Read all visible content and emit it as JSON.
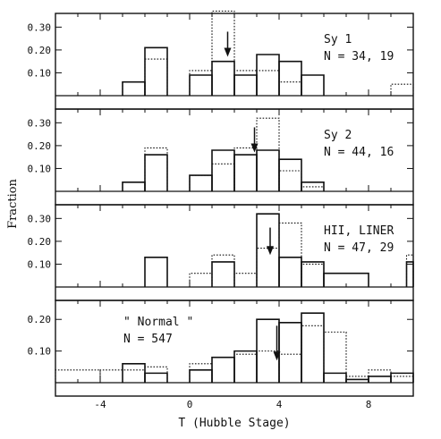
{
  "chart_data": {
    "type": "histogram",
    "xlabel": "T (Hubble Stage)",
    "ylabel": "Fraction",
    "xlim": [
      -6,
      10
    ],
    "x_ticks": [
      -4,
      0,
      4,
      8
    ],
    "x_tick_labels": [
      "-4",
      "0",
      "4",
      "8"
    ],
    "bins": [
      -3,
      -2,
      -1,
      0,
      1,
      2,
      3,
      4,
      5,
      6,
      7,
      8,
      9,
      10
    ],
    "panels": [
      {
        "label_line1": "Sy 1",
        "label_line2": "N = 34, 19",
        "ylim": [
          0,
          0.36
        ],
        "y_ticks": [
          0.1,
          0.2,
          0.3
        ],
        "y_tick_labels": [
          "0.10",
          "0.20",
          "0.30"
        ],
        "solid": [
          {
            "x0": -3,
            "x1": -2,
            "y": 0.06
          },
          {
            "x0": -2,
            "x1": -1,
            "y": 0.21
          },
          {
            "x0": 0,
            "x1": 1,
            "y": 0.09
          },
          {
            "x0": 1,
            "x1": 2,
            "y": 0.15
          },
          {
            "x0": 2,
            "x1": 3,
            "y": 0.09
          },
          {
            "x0": 3,
            "x1": 4,
            "y": 0.18
          },
          {
            "x0": 4,
            "x1": 5,
            "y": 0.15
          },
          {
            "x0": 5,
            "x1": 6,
            "y": 0.09
          }
        ],
        "dotted": [
          {
            "x0": -3,
            "x1": -2,
            "y": 0.06
          },
          {
            "x0": -2,
            "x1": -1,
            "y": 0.16
          },
          {
            "x0": 0,
            "x1": 1,
            "y": 0.11
          },
          {
            "x0": 1,
            "x1": 2,
            "y": 0.37
          },
          {
            "x0": 2,
            "x1": 3,
            "y": 0.11
          },
          {
            "x0": 3,
            "x1": 4,
            "y": 0.11
          },
          {
            "x0": 4,
            "x1": 5,
            "y": 0.06
          },
          {
            "x0": 9,
            "x1": 10,
            "y": 0.05
          }
        ],
        "arrow_x": 1.7,
        "arrow_y_top": 0.28,
        "arrow_y_bottom": 0.17
      },
      {
        "label_line1": "Sy 2",
        "label_line2": "N = 44, 16",
        "ylim": [
          0,
          0.36
        ],
        "y_ticks": [
          0.1,
          0.2,
          0.3
        ],
        "y_tick_labels": [
          "0.10",
          "0.20",
          "0.30"
        ],
        "solid": [
          {
            "x0": -3,
            "x1": -2,
            "y": 0.04
          },
          {
            "x0": -2,
            "x1": -1,
            "y": 0.16
          },
          {
            "x0": 0,
            "x1": 1,
            "y": 0.07
          },
          {
            "x0": 1,
            "x1": 2,
            "y": 0.18
          },
          {
            "x0": 2,
            "x1": 3,
            "y": 0.16
          },
          {
            "x0": 3,
            "x1": 4,
            "y": 0.18
          },
          {
            "x0": 4,
            "x1": 5,
            "y": 0.14
          },
          {
            "x0": 5,
            "x1": 6,
            "y": 0.04
          }
        ],
        "dotted": [
          {
            "x0": -3,
            "x1": -2,
            "y": 0.04
          },
          {
            "x0": -2,
            "x1": -1,
            "y": 0.19
          },
          {
            "x0": 0,
            "x1": 1,
            "y": 0.07
          },
          {
            "x0": 1,
            "x1": 2,
            "y": 0.12
          },
          {
            "x0": 2,
            "x1": 3,
            "y": 0.19
          },
          {
            "x0": 3,
            "x1": 4,
            "y": 0.32
          },
          {
            "x0": 4,
            "x1": 5,
            "y": 0.09
          },
          {
            "x0": 5,
            "x1": 6,
            "y": 0.02
          }
        ],
        "arrow_x": 2.9,
        "arrow_y_top": 0.28,
        "arrow_y_bottom": 0.17
      },
      {
        "label_line1": "HII, LINER",
        "label_line2": "N = 47, 29",
        "ylim": [
          0,
          0.36
        ],
        "y_ticks": [
          0.1,
          0.2,
          0.3
        ],
        "y_tick_labels": [
          "0.10",
          "0.20",
          "0.30"
        ],
        "solid": [
          {
            "x0": -2,
            "x1": -1,
            "y": 0.13
          },
          {
            "x0": 1,
            "x1": 2,
            "y": 0.11
          },
          {
            "x0": 3,
            "x1": 4,
            "y": 0.32
          },
          {
            "x0": 4,
            "x1": 5,
            "y": 0.13
          },
          {
            "x0": 5,
            "x1": 6,
            "y": 0.11
          },
          {
            "x0": 6,
            "x1": 8,
            "y": 0.06
          },
          {
            "x0": 9.7,
            "x1": 10,
            "y": 0.11
          }
        ],
        "dotted": [
          {
            "x0": 0,
            "x1": 1,
            "y": 0.06
          },
          {
            "x0": 1,
            "x1": 2,
            "y": 0.14
          },
          {
            "x0": 2,
            "x1": 3,
            "y": 0.06
          },
          {
            "x0": 3,
            "x1": 4,
            "y": 0.17
          },
          {
            "x0": 4,
            "x1": 5,
            "y": 0.28
          },
          {
            "x0": 5,
            "x1": 6,
            "y": 0.1
          },
          {
            "x0": 9.7,
            "x1": 10,
            "y": 0.14
          }
        ],
        "arrow_x": 3.6,
        "arrow_y_top": 0.26,
        "arrow_y_bottom": 0.14
      },
      {
        "label_line1": "\" Normal \"",
        "label_line2": "N = 547",
        "ylim": [
          0,
          0.26
        ],
        "y_ticks": [
          0.1,
          0.2
        ],
        "y_tick_labels": [
          "0.10",
          "0.20"
        ],
        "solid": [
          {
            "x0": -3,
            "x1": -2,
            "y": 0.06
          },
          {
            "x0": -2,
            "x1": -1,
            "y": 0.03
          },
          {
            "x0": 0,
            "x1": 1,
            "y": 0.04
          },
          {
            "x0": 1,
            "x1": 2,
            "y": 0.08
          },
          {
            "x0": 2,
            "x1": 3,
            "y": 0.1
          },
          {
            "x0": 3,
            "x1": 4,
            "y": 0.2
          },
          {
            "x0": 4,
            "x1": 5,
            "y": 0.19
          },
          {
            "x0": 5,
            "x1": 6,
            "y": 0.22
          },
          {
            "x0": 6,
            "x1": 7,
            "y": 0.03
          },
          {
            "x0": 7,
            "x1": 8,
            "y": 0.01
          },
          {
            "x0": 8,
            "x1": 9,
            "y": 0.02
          },
          {
            "x0": 9,
            "x1": 10,
            "y": 0.03
          }
        ],
        "dotted": [
          {
            "x0": -6,
            "x1": -4,
            "y": 0.04
          },
          {
            "x0": -4,
            "x1": -2,
            "y": 0.04
          },
          {
            "x0": -2,
            "x1": -1,
            "y": 0.05
          },
          {
            "x0": 0,
            "x1": 1,
            "y": 0.06
          },
          {
            "x0": 1,
            "x1": 2,
            "y": 0.08
          },
          {
            "x0": 2,
            "x1": 3,
            "y": 0.09
          },
          {
            "x0": 3,
            "x1": 4,
            "y": 0.1
          },
          {
            "x0": 4,
            "x1": 5,
            "y": 0.09
          },
          {
            "x0": 5,
            "x1": 6,
            "y": 0.18
          },
          {
            "x0": 6,
            "x1": 7,
            "y": 0.16
          },
          {
            "x0": 7,
            "x1": 8,
            "y": 0.02
          },
          {
            "x0": 8,
            "x1": 9,
            "y": 0.04
          },
          {
            "x0": 9,
            "x1": 10,
            "y": 0.02
          }
        ],
        "arrow_x": 3.9,
        "arrow_y_top": 0.18,
        "arrow_y_bottom": 0.07
      }
    ]
  }
}
